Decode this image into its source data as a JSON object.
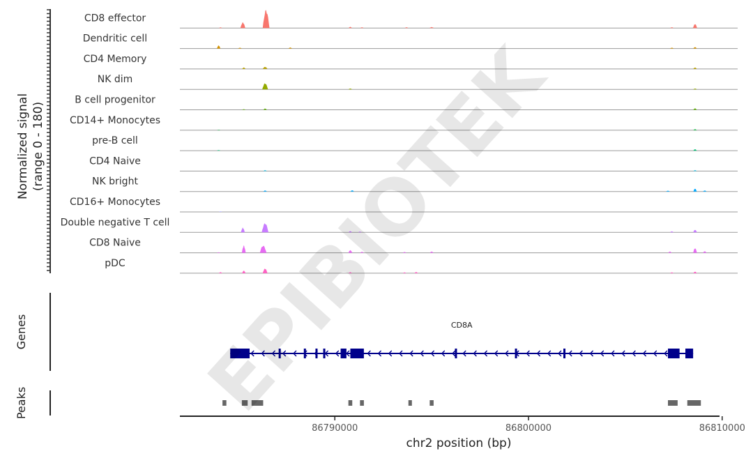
{
  "chart_data": {
    "type": "area",
    "coverage": {
      "ylabel_line1": "Normalized signal",
      "ylabel_line2": "(range 0 - 180)",
      "ylim": [
        0,
        180
      ],
      "tracks": [
        {
          "name": "CD8 effector",
          "color": "#f8766d",
          "peaks": [
            [
              86784100,
              150,
              7
            ],
            [
              86785250,
              250,
              55
            ],
            [
              86786450,
              350,
              175
            ],
            [
              86790800,
              150,
              12
            ],
            [
              86791400,
              150,
              8
            ],
            [
              86793700,
              120,
              8
            ],
            [
              86795000,
              220,
              10
            ],
            [
              86807400,
              150,
              8
            ],
            [
              86808600,
              220,
              40
            ]
          ]
        },
        {
          "name": "Dendritic cell",
          "color": "#d39200",
          "peaks": [
            [
              86784000,
              150,
              30
            ],
            [
              86785100,
              120,
              8
            ],
            [
              86787700,
              120,
              10
            ],
            [
              86807400,
              100,
              8
            ],
            [
              86808600,
              150,
              14
            ]
          ]
        },
        {
          "name": "CD4 Memory",
          "color": "#b79f00",
          "peaks": [
            [
              86785300,
              150,
              14
            ],
            [
              86786400,
              250,
              20
            ],
            [
              86808600,
              150,
              14
            ]
          ]
        },
        {
          "name": "NK dim",
          "color": "#93aa00",
          "peaks": [
            [
              86786400,
              300,
              60
            ],
            [
              86790800,
              180,
              8
            ],
            [
              86808600,
              150,
              8
            ]
          ]
        },
        {
          "name": "B cell progenitor",
          "color": "#5eb300",
          "peaks": [
            [
              86785300,
              100,
              6
            ],
            [
              86786400,
              150,
              12
            ],
            [
              86808600,
              150,
              14
            ]
          ]
        },
        {
          "name": "CD14+ Monocytes",
          "color": "#00ba38",
          "peaks": [
            [
              86784000,
              100,
              4
            ],
            [
              86808600,
              150,
              10
            ]
          ]
        },
        {
          "name": "pre-B cell",
          "color": "#00bf74",
          "peaks": [
            [
              86784000,
              100,
              5
            ],
            [
              86808600,
              150,
              14
            ]
          ]
        },
        {
          "name": "CD4 Naive",
          "color": "#00b9e3",
          "peaks": [
            [
              86786400,
              150,
              8
            ],
            [
              86808600,
              150,
              8
            ]
          ]
        },
        {
          "name": "NK bright",
          "color": "#00a9ff",
          "peaks": [
            [
              86786400,
              120,
              10
            ],
            [
              86790900,
              100,
              12
            ],
            [
              86807200,
              100,
              8
            ],
            [
              86808600,
              150,
              28
            ],
            [
              86809100,
              100,
              10
            ]
          ]
        },
        {
          "name": "CD16+ Monocytes",
          "color": "#9590ff",
          "peaks": [
            [
              86784100,
              100,
              4
            ]
          ]
        },
        {
          "name": "Double negative T cell",
          "color": "#c77cff",
          "peaks": [
            [
              86785250,
              200,
              45
            ],
            [
              86786400,
              350,
              90
            ],
            [
              86790800,
              180,
              12
            ],
            [
              86791300,
              150,
              8
            ],
            [
              86807400,
              150,
              10
            ],
            [
              86808600,
              200,
              25
            ]
          ]
        },
        {
          "name": "CD8 Naive",
          "color": "#e76bf3",
          "peaks": [
            [
              86784000,
              100,
              5
            ],
            [
              86785300,
              200,
              70
            ],
            [
              86786300,
              350,
              70
            ],
            [
              86790800,
              200,
              25
            ],
            [
              86791400,
              150,
              10
            ],
            [
              86793600,
              120,
              8
            ],
            [
              86795000,
              100,
              12
            ],
            [
              86807300,
              150,
              12
            ],
            [
              86808600,
              200,
              45
            ],
            [
              86809100,
              150,
              15
            ]
          ]
        },
        {
          "name": "pDC",
          "color": "#ff61c3",
          "peaks": [
            [
              86784100,
              120,
              10
            ],
            [
              86785300,
              150,
              25
            ],
            [
              86786400,
              250,
              45
            ],
            [
              86790800,
              150,
              10
            ],
            [
              86793600,
              120,
              8
            ],
            [
              86794200,
              150,
              12
            ],
            [
              86807400,
              120,
              8
            ],
            [
              86808600,
              150,
              15
            ]
          ]
        }
      ]
    },
    "genes": {
      "panel_label": "Genes",
      "gene_name": "CD8A",
      "color": "#00008b",
      "strand": "-",
      "start": 86784600,
      "end": 86808500,
      "exons": [
        [
          86784600,
          86785600
        ],
        [
          86787100,
          86787200
        ],
        [
          86788400,
          86788500
        ],
        [
          86789000,
          86789100
        ],
        [
          86789400,
          86789500
        ],
        [
          86790300,
          86790600
        ],
        [
          86790800,
          86791500
        ],
        [
          86796200,
          86796300
        ],
        [
          86799300,
          86799400
        ],
        [
          86801800,
          86801900
        ],
        [
          86807200,
          86807800
        ],
        [
          86808100,
          86808500
        ]
      ]
    },
    "peaks": {
      "panel_label": "Peaks",
      "color": "#666666",
      "regions": [
        [
          86784200,
          86784400
        ],
        [
          86785200,
          86785500
        ],
        [
          86785700,
          86786300
        ],
        [
          86790700,
          86790900
        ],
        [
          86791300,
          86791500
        ],
        [
          86793800,
          86793950
        ],
        [
          86794900,
          86795100
        ],
        [
          86807200,
          86807700
        ],
        [
          86808200,
          86808900
        ]
      ]
    },
    "x_axis": {
      "label": "chr2 position (bp)",
      "range": [
        86782000,
        86810800
      ],
      "ticks": [
        86790000,
        86800000,
        86810000
      ],
      "tick_labels": [
        "86790000",
        "86800000",
        "86810000"
      ]
    }
  },
  "watermark": "EPIBIOTEK"
}
